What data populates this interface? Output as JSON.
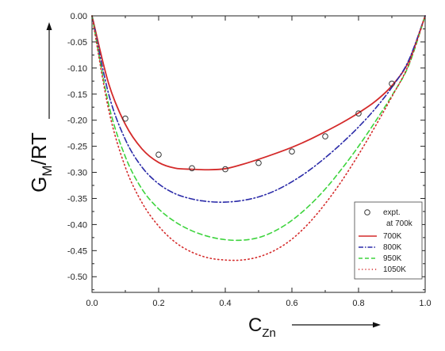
{
  "chart_data": {
    "type": "line",
    "xlabel_main": "C",
    "xlabel_sub": "Zn",
    "ylabel_main": "G",
    "ylabel_sub": "M",
    "ylabel_rest": "/RT",
    "xlim": [
      0.0,
      1.0
    ],
    "ylim": [
      -0.53,
      0.0
    ],
    "x_ticks": [
      "0.0",
      "0.2",
      "0.4",
      "0.6",
      "0.8",
      "1.0"
    ],
    "y_ticks": [
      "0.00",
      "-0.05",
      "-0.10",
      "-0.15",
      "-0.20",
      "-0.25",
      "-0.30",
      "-0.35",
      "-0.40",
      "-0.45",
      "-0.50"
    ],
    "legend_position": "lower-right",
    "series": [
      {
        "name": "expt.",
        "name_line2": "at 700k",
        "style": "markers",
        "color": "#333333",
        "x": [
          0.1,
          0.2,
          0.3,
          0.4,
          0.5,
          0.6,
          0.7,
          0.8,
          0.9
        ],
        "y": [
          -0.197,
          -0.266,
          -0.292,
          -0.294,
          -0.282,
          -0.26,
          -0.231,
          -0.187,
          -0.13
        ]
      },
      {
        "name": "700K",
        "style": "solid",
        "color": "#d42a2a",
        "x": [
          0.0,
          0.05,
          0.1,
          0.15,
          0.2,
          0.25,
          0.3,
          0.35,
          0.4,
          0.45,
          0.5,
          0.55,
          0.6,
          0.65,
          0.7,
          0.75,
          0.8,
          0.85,
          0.9,
          0.95,
          1.0
        ],
        "y": [
          0.0,
          -0.13,
          -0.208,
          -0.255,
          -0.281,
          -0.292,
          -0.294,
          -0.295,
          -0.293,
          -0.285,
          -0.275,
          -0.264,
          -0.252,
          -0.238,
          -0.222,
          -0.205,
          -0.186,
          -0.164,
          -0.134,
          -0.088,
          0.0
        ]
      },
      {
        "name": "800K",
        "style": "dashdot",
        "color": "#2a2aa8",
        "x": [
          0.0,
          0.05,
          0.1,
          0.15,
          0.2,
          0.25,
          0.3,
          0.35,
          0.4,
          0.45,
          0.5,
          0.55,
          0.6,
          0.65,
          0.7,
          0.75,
          0.8,
          0.85,
          0.9,
          0.95,
          1.0
        ],
        "y": [
          0.0,
          -0.15,
          -0.237,
          -0.29,
          -0.322,
          -0.341,
          -0.351,
          -0.356,
          -0.357,
          -0.354,
          -0.347,
          -0.335,
          -0.318,
          -0.297,
          -0.272,
          -0.244,
          -0.213,
          -0.178,
          -0.137,
          -0.086,
          0.0
        ]
      },
      {
        "name": "950K",
        "style": "dashed",
        "color": "#3ed43e",
        "x": [
          0.0,
          0.05,
          0.1,
          0.15,
          0.2,
          0.25,
          0.3,
          0.35,
          0.4,
          0.45,
          0.5,
          0.55,
          0.6,
          0.65,
          0.7,
          0.75,
          0.8,
          0.85,
          0.9,
          0.95,
          1.0
        ],
        "y": [
          0.0,
          -0.17,
          -0.27,
          -0.332,
          -0.37,
          -0.395,
          -0.412,
          -0.423,
          -0.429,
          -0.43,
          -0.425,
          -0.412,
          -0.392,
          -0.365,
          -0.332,
          -0.293,
          -0.25,
          -0.203,
          -0.153,
          -0.096,
          0.0
        ]
      },
      {
        "name": "1050K",
        "style": "dotted",
        "color": "#d42a2a",
        "x": [
          0.0,
          0.05,
          0.1,
          0.15,
          0.2,
          0.25,
          0.3,
          0.35,
          0.4,
          0.45,
          0.5,
          0.55,
          0.6,
          0.65,
          0.7,
          0.75,
          0.8,
          0.85,
          0.9,
          0.95,
          1.0
        ],
        "y": [
          0.0,
          -0.18,
          -0.29,
          -0.358,
          -0.403,
          -0.434,
          -0.453,
          -0.464,
          -0.468,
          -0.468,
          -0.462,
          -0.449,
          -0.428,
          -0.398,
          -0.36,
          -0.316,
          -0.266,
          -0.212,
          -0.155,
          -0.094,
          0.0
        ]
      }
    ]
  }
}
